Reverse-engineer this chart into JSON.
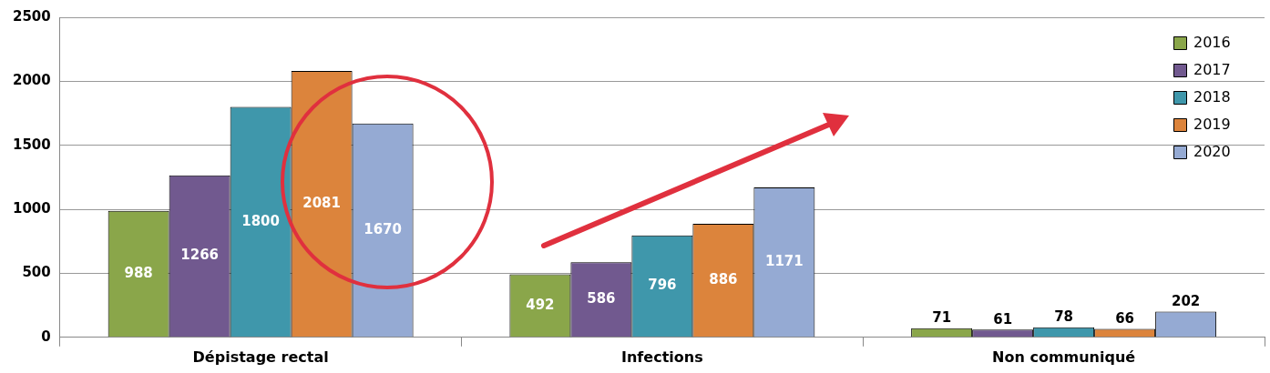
{
  "chart_data": {
    "type": "bar",
    "categories": [
      "Dépistage rectal",
      "Infections",
      "Non communiqué"
    ],
    "series": [
      {
        "name": "2016",
        "color": "#8aa64a",
        "values": [
          988,
          492,
          71
        ]
      },
      {
        "name": "2017",
        "color": "#71598f",
        "values": [
          1266,
          586,
          61
        ]
      },
      {
        "name": "2018",
        "color": "#3f97ab",
        "values": [
          1800,
          796,
          78
        ]
      },
      {
        "name": "2019",
        "color": "#dc843c",
        "values": [
          2081,
          886,
          66
        ]
      },
      {
        "name": "2020",
        "color": "#95aad3",
        "values": [
          1670,
          1171,
          202
        ]
      }
    ],
    "ylim": [
      0,
      2500
    ],
    "yticks": [
      0,
      500,
      1000,
      1500,
      2000,
      2500
    ],
    "grid": "y",
    "legend": "top right",
    "data_labels": true
  }
}
